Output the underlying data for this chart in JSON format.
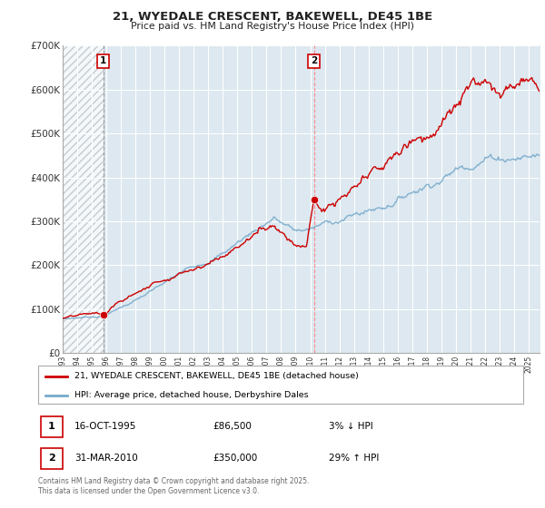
{
  "title": "21, WYEDALE CRESCENT, BAKEWELL, DE45 1BE",
  "subtitle": "Price paid vs. HM Land Registry's House Price Index (HPI)",
  "legend_line1": "21, WYEDALE CRESCENT, BAKEWELL, DE45 1BE (detached house)",
  "legend_line2": "HPI: Average price, detached house, Derbyshire Dales",
  "annotation1_date": "16-OCT-1995",
  "annotation1_price": "£86,500",
  "annotation1_hpi": "3% ↓ HPI",
  "annotation2_date": "31-MAR-2010",
  "annotation2_price": "£350,000",
  "annotation2_hpi": "29% ↑ HPI",
  "footer": "Contains HM Land Registry data © Crown copyright and database right 2025.\nThis data is licensed under the Open Government Licence v3.0.",
  "ylim": [
    0,
    700000
  ],
  "xlim_start": 1993.0,
  "xlim_end": 2025.75,
  "purchase1_year": 1995.79,
  "purchase1_price": 86500,
  "purchase2_year": 2010.25,
  "purchase2_price": 350000,
  "line_color_red": "#cc0000",
  "line_color_blue": "#77aacc",
  "hatch_color": "#cccccc",
  "grid_color": "#c8d8e8",
  "bg_color": "#dde8f0",
  "annotation_box_color": "#cc0000",
  "vline1_color": "#aaaaaa",
  "vline2_color": "#ff8888",
  "title_color": "#222222"
}
